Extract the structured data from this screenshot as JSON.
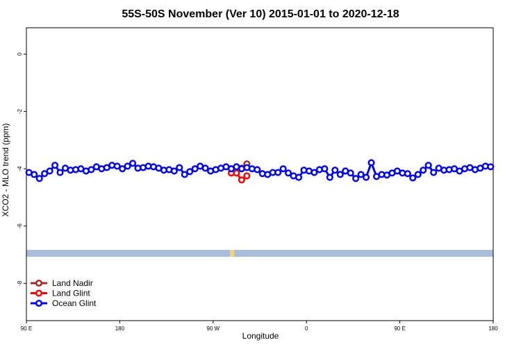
{
  "chart_data": {
    "type": "line",
    "title": "55S-50S November (Ver 10)   2015-01-01 to 2020-12-18",
    "x_label": "Longitude",
    "y_label": "XCO2 - MLO trend (ppm)",
    "xlim": [
      90,
      540
    ],
    "xticks": [
      {
        "value": 90,
        "label": "90 E"
      },
      {
        "value": 180,
        "label": "180"
      },
      {
        "value": 270,
        "label": "90 W"
      },
      {
        "value": 360,
        "label": "0"
      },
      {
        "value": 450,
        "label": "90 E"
      },
      {
        "value": 540,
        "label": "180"
      }
    ],
    "ylim": [
      -9.3,
      0.92
    ],
    "yticks": [
      0,
      -2,
      -4,
      -6,
      -8
    ],
    "legend": "bottom-left",
    "series": [
      {
        "name": "Land Nadir",
        "color": "#a52a2a",
        "x": [
          297.5,
          302.5
        ],
        "values": [
          -3.98,
          -3.83
        ]
      },
      {
        "name": "Land Glint",
        "color": "#ff0000",
        "x": [
          287.5,
          292.5,
          297.5,
          302.5
        ],
        "values": [
          -4.15,
          -4.15,
          -4.39,
          -4.25
        ]
      },
      {
        "name": "Ocean Glint",
        "color": "#0000ff",
        "x": [
          92.5,
          97.5,
          102.5,
          107.5,
          112.5,
          117.5,
          122.5,
          127.5,
          132.5,
          137.5,
          142.5,
          147.5,
          152.5,
          157.5,
          162.5,
          167.5,
          172.5,
          177.5,
          182.5,
          187.5,
          192.5,
          197.5,
          202.5,
          207.5,
          212.5,
          217.5,
          222.5,
          227.5,
          232.5,
          237.5,
          242.5,
          247.5,
          252.5,
          257.5,
          262.5,
          267.5,
          272.5,
          277.5,
          282.5,
          287.5,
          292.5,
          297.5,
          302.5,
          307.5,
          312.5,
          317.5,
          322.5,
          327.5,
          332.5,
          337.5,
          342.5,
          347.5,
          352.5,
          357.5,
          362.5,
          367.5,
          372.5,
          377.5,
          382.5,
          387.5,
          392.5,
          397.5,
          402.5,
          407.5,
          412.5,
          417.5,
          422.5,
          427.5,
          432.5,
          437.5,
          442.5,
          447.5,
          452.5,
          457.5,
          462.5,
          467.5,
          472.5,
          477.5,
          482.5,
          487.5,
          492.5,
          497.5,
          502.5,
          507.5,
          512.5,
          517.5,
          522.5,
          527.5,
          532.5,
          537.5
        ],
        "values": [
          -4.13,
          -4.2,
          -4.34,
          -4.17,
          -4.08,
          -3.88,
          -4.13,
          -3.98,
          -4.05,
          -4.03,
          -4.0,
          -4.08,
          -4.03,
          -3.93,
          -4.0,
          -3.96,
          -3.88,
          -3.91,
          -4.0,
          -3.91,
          -3.81,
          -3.98,
          -3.96,
          -3.91,
          -3.93,
          -3.98,
          -4.05,
          -4.03,
          -4.08,
          -3.96,
          -4.2,
          -4.1,
          -4.0,
          -3.91,
          -3.98,
          -4.08,
          -4.03,
          -3.98,
          -3.93,
          -4.0,
          -3.93,
          -4.0,
          -3.96,
          -4.0,
          -4.03,
          -4.17,
          -4.2,
          -4.13,
          -4.13,
          -4.0,
          -4.15,
          -4.25,
          -4.3,
          -4.05,
          -4.08,
          -4.13,
          -4.03,
          -4.0,
          -4.3,
          -4.05,
          -4.2,
          -4.08,
          -4.15,
          -4.34,
          -4.2,
          -4.3,
          -3.79,
          -4.27,
          -4.2,
          -4.22,
          -4.15,
          -4.08,
          -4.15,
          -4.17,
          -4.32,
          -4.2,
          -4.05,
          -3.88,
          -4.13,
          -3.98,
          -4.05,
          -4.03,
          -4.0,
          -4.08,
          -4.0,
          -3.96,
          -4.03,
          -3.98,
          -3.91,
          -3.93
        ]
      }
    ]
  }
}
